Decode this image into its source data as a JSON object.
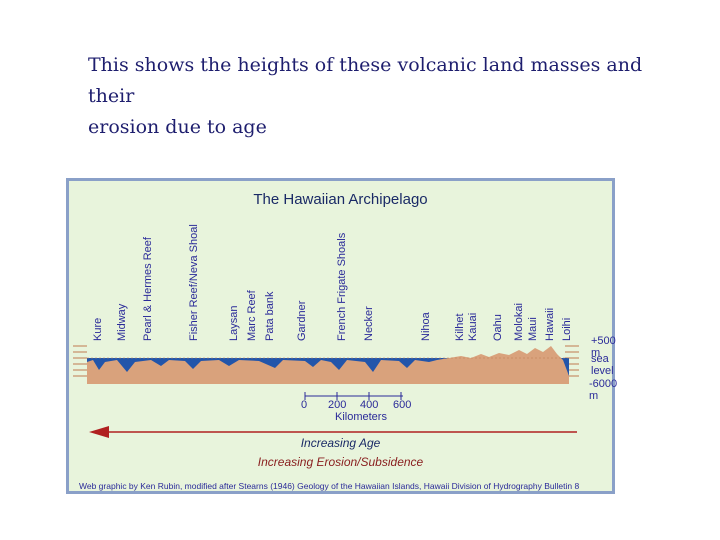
{
  "slide": {
    "title_line1": "This shows the heights of these volcanic land masses and their",
    "title_line2": "erosion due to age"
  },
  "figure": {
    "title": "The Hawaiian Archipelago",
    "islands": [
      "Kure",
      "Midway",
      "Pearl & Hermes Reef",
      "Fisher Reef/Neva Shoal",
      "Laysan",
      "Marc Reef",
      "Pata bank",
      "Gardner",
      "French Frigate Shoals",
      "Necker",
      "Nihoa",
      "Kilhet",
      "Kauai",
      "Oahu",
      "Molokai",
      "Maui",
      "Hawaii",
      "Loihi"
    ],
    "levels": {
      "top": "+500 m",
      "middle": "sea level",
      "bottom": "-6000 m"
    },
    "scale": {
      "ticks": [
        "0",
        "200",
        "400",
        "600"
      ],
      "unit_label": "Kilometers"
    },
    "age_label": "Increasing Age",
    "erosion_label": "Increasing Erosion/Subsidence",
    "credit": "Web graphic by Ken Rubin, modified after Stearns (1946) Geology of the Hawaiian Islands, Hawaii Division of Hydrography Bulletin 8",
    "colors": {
      "land": "#d9a27c",
      "ocean": "#2255aa",
      "arrow": "#b02020",
      "background": "#e8f4dc"
    }
  }
}
